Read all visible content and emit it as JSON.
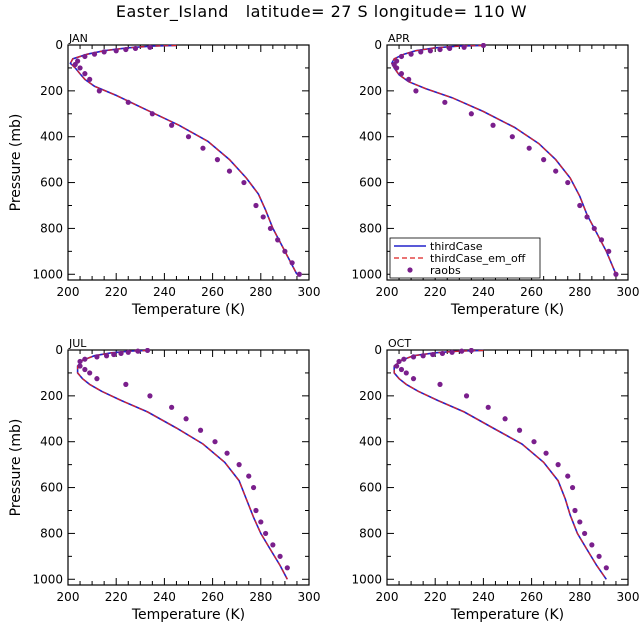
{
  "title": "Easter_Island   latitude= 27 S longitude= 110 W",
  "colors": {
    "model": "#2222cc",
    "model_em_off": "#dd2222",
    "raobs": "#7a1f8c"
  },
  "chart_data": [
    {
      "type": "line",
      "label": "JAN",
      "xlabel": "Temperature (K)",
      "ylabel": "Pressure (mb)",
      "xlim": [
        200,
        300
      ],
      "ylim": [
        1025,
        0
      ],
      "xticks": [
        "200",
        "220",
        "240",
        "260",
        "280",
        "300"
      ],
      "yticks": [
        "0",
        "200",
        "400",
        "600",
        "800",
        "1000"
      ],
      "series": [
        {
          "name": "thirdCase",
          "style": "solid",
          "x": [
            245,
            235,
            225,
            215,
            208,
            202,
            201,
            203,
            205,
            207,
            211,
            220,
            232,
            246,
            258,
            267,
            274,
            279,
            282,
            285,
            290,
            295
          ],
          "y": [
            2,
            5,
            12,
            25,
            40,
            60,
            80,
            100,
            125,
            150,
            180,
            220,
            280,
            350,
            420,
            500,
            580,
            650,
            720,
            800,
            900,
            1000
          ]
        },
        {
          "name": "thirdCase_em_off",
          "style": "dashed",
          "x": [
            245,
            235,
            225,
            215,
            208,
            202,
            201,
            203,
            205,
            207,
            211,
            220,
            232,
            246,
            258,
            267,
            274,
            279,
            282,
            285,
            290,
            295
          ],
          "y": [
            2,
            5,
            12,
            25,
            40,
            60,
            80,
            100,
            125,
            150,
            180,
            220,
            280,
            350,
            420,
            500,
            580,
            650,
            720,
            800,
            900,
            1000
          ]
        },
        {
          "name": "raobs",
          "style": "dots",
          "x": [
            234,
            228,
            224,
            220,
            215,
            211,
            207,
            204,
            203,
            205,
            207,
            209,
            213,
            225,
            235,
            243,
            250,
            256,
            262,
            267,
            273,
            278,
            281,
            284,
            287,
            290,
            293,
            296
          ],
          "y": [
            10,
            15,
            20,
            25,
            30,
            40,
            50,
            70,
            85,
            100,
            125,
            150,
            200,
            250,
            300,
            350,
            400,
            450,
            500,
            550,
            600,
            700,
            750,
            800,
            850,
            900,
            950,
            1000
          ]
        }
      ]
    },
    {
      "type": "line",
      "label": "APR",
      "xlabel": "Temperature (K)",
      "ylabel": "",
      "xlim": [
        200,
        300
      ],
      "ylim": [
        1025,
        0
      ],
      "xticks": [
        "200",
        "220",
        "240",
        "260",
        "280",
        "300"
      ],
      "yticks": [
        "0",
        "200",
        "400",
        "600",
        "800",
        "1000"
      ],
      "series": [
        {
          "name": "thirdCase",
          "style": "solid",
          "x": [
            240,
            230,
            220,
            212,
            207,
            203,
            202,
            203,
            205,
            209,
            216,
            227,
            240,
            253,
            263,
            270,
            276,
            280,
            283,
            287,
            291,
            295
          ],
          "y": [
            2,
            5,
            12,
            25,
            40,
            60,
            80,
            100,
            130,
            160,
            190,
            230,
            290,
            360,
            430,
            500,
            580,
            660,
            740,
            820,
            900,
            1000
          ]
        },
        {
          "name": "thirdCase_em_off",
          "style": "dashed",
          "x": [
            240,
            230,
            220,
            212,
            207,
            203,
            202,
            203,
            205,
            209,
            216,
            227,
            240,
            253,
            263,
            270,
            276,
            280,
            283,
            287,
            291,
            295
          ],
          "y": [
            2,
            5,
            12,
            25,
            40,
            60,
            80,
            100,
            130,
            160,
            190,
            230,
            290,
            360,
            430,
            500,
            580,
            660,
            740,
            820,
            900,
            1000
          ]
        },
        {
          "name": "raobs",
          "style": "dots",
          "x": [
            240,
            232,
            226,
            222,
            218,
            214,
            210,
            206,
            204,
            203,
            204,
            206,
            209,
            212,
            224,
            235,
            244,
            252,
            259,
            265,
            270,
            275,
            280,
            283,
            286,
            289,
            292,
            295
          ],
          "y": [
            2,
            10,
            15,
            20,
            25,
            30,
            40,
            50,
            70,
            85,
            100,
            125,
            150,
            200,
            250,
            300,
            350,
            400,
            450,
            500,
            550,
            600,
            700,
            750,
            800,
            850,
            900,
            1000
          ]
        }
      ],
      "legend": {
        "placement": "bottom-left",
        "entries": [
          {
            "name": "thirdCase",
            "style": "solid"
          },
          {
            "name": "thirdCase_em_off",
            "style": "dashed"
          },
          {
            "name": "raobs",
            "style": "dots"
          }
        ]
      }
    },
    {
      "type": "line",
      "label": "JUL",
      "xlabel": "Temperature (K)",
      "ylabel": "Pressure (mb)",
      "xlim": [
        200,
        300
      ],
      "ylim": [
        1025,
        0
      ],
      "xticks": [
        "200",
        "220",
        "240",
        "260",
        "280",
        "300"
      ],
      "yticks": [
        "0",
        "200",
        "400",
        "600",
        "800",
        "1000"
      ],
      "series": [
        {
          "name": "thirdCase",
          "style": "solid",
          "x": [
            233,
            226,
            218,
            211,
            206,
            204,
            204,
            206,
            209,
            214,
            222,
            233,
            245,
            256,
            265,
            271,
            274,
            277,
            280,
            284,
            288,
            291
          ],
          "y": [
            2,
            5,
            12,
            25,
            45,
            70,
            100,
            125,
            150,
            180,
            220,
            270,
            340,
            410,
            490,
            570,
            650,
            730,
            800,
            870,
            940,
            1000
          ]
        },
        {
          "name": "thirdCase_em_off",
          "style": "dashed",
          "x": [
            233,
            226,
            218,
            211,
            206,
            204,
            204,
            206,
            209,
            214,
            222,
            233,
            245,
            256,
            265,
            271,
            274,
            277,
            280,
            284,
            288,
            291
          ],
          "y": [
            2,
            5,
            12,
            25,
            45,
            70,
            100,
            125,
            150,
            180,
            220,
            270,
            340,
            410,
            490,
            570,
            650,
            730,
            800,
            870,
            940,
            1000
          ]
        },
        {
          "name": "raobs",
          "style": "dots",
          "x": [
            233,
            229,
            225,
            222,
            219,
            216,
            212,
            207,
            205,
            205,
            207,
            209,
            212,
            224,
            234,
            243,
            249,
            255,
            261,
            266,
            271,
            275,
            277,
            278,
            280,
            282,
            285,
            288,
            291
          ],
          "y": [
            2,
            5,
            10,
            15,
            20,
            25,
            30,
            40,
            50,
            70,
            85,
            100,
            125,
            150,
            200,
            250,
            300,
            350,
            400,
            450,
            500,
            550,
            600,
            700,
            750,
            800,
            850,
            900,
            950
          ]
        }
      ]
    },
    {
      "type": "line",
      "label": "OCT",
      "xlabel": "Temperature (K)",
      "ylabel": "",
      "xlim": [
        200,
        300
      ],
      "ylim": [
        1025,
        0
      ],
      "xticks": [
        "200",
        "220",
        "240",
        "260",
        "280",
        "300"
      ],
      "yticks": [
        "0",
        "200",
        "400",
        "600",
        "800",
        "1000"
      ],
      "series": [
        {
          "name": "thirdCase",
          "style": "solid",
          "x": [
            240,
            230,
            220,
            211,
            206,
            203,
            203,
            205,
            208,
            213,
            221,
            232,
            244,
            256,
            265,
            271,
            274,
            276,
            279,
            283,
            287,
            291
          ],
          "y": [
            2,
            5,
            12,
            25,
            45,
            70,
            100,
            125,
            150,
            180,
            220,
            270,
            340,
            410,
            490,
            570,
            650,
            720,
            800,
            870,
            940,
            1000
          ]
        },
        {
          "name": "thirdCase_em_off",
          "style": "dashed",
          "x": [
            240,
            230,
            220,
            211,
            206,
            203,
            203,
            205,
            208,
            213,
            221,
            232,
            244,
            256,
            265,
            271,
            274,
            276,
            279,
            283,
            287,
            291
          ],
          "y": [
            2,
            5,
            12,
            25,
            45,
            70,
            100,
            125,
            150,
            180,
            220,
            270,
            340,
            410,
            490,
            570,
            650,
            720,
            800,
            870,
            940,
            1000
          ]
        },
        {
          "name": "raobs",
          "style": "dots",
          "x": [
            235,
            231,
            227,
            223,
            219,
            215,
            211,
            207,
            205,
            204,
            206,
            208,
            211,
            222,
            233,
            242,
            249,
            255,
            261,
            266,
            271,
            275,
            277,
            278,
            280,
            282,
            285,
            288,
            291
          ],
          "y": [
            2,
            5,
            10,
            15,
            20,
            25,
            30,
            40,
            50,
            70,
            85,
            100,
            125,
            150,
            200,
            250,
            300,
            350,
            400,
            450,
            500,
            550,
            600,
            700,
            750,
            800,
            850,
            900,
            950
          ]
        }
      ]
    }
  ]
}
